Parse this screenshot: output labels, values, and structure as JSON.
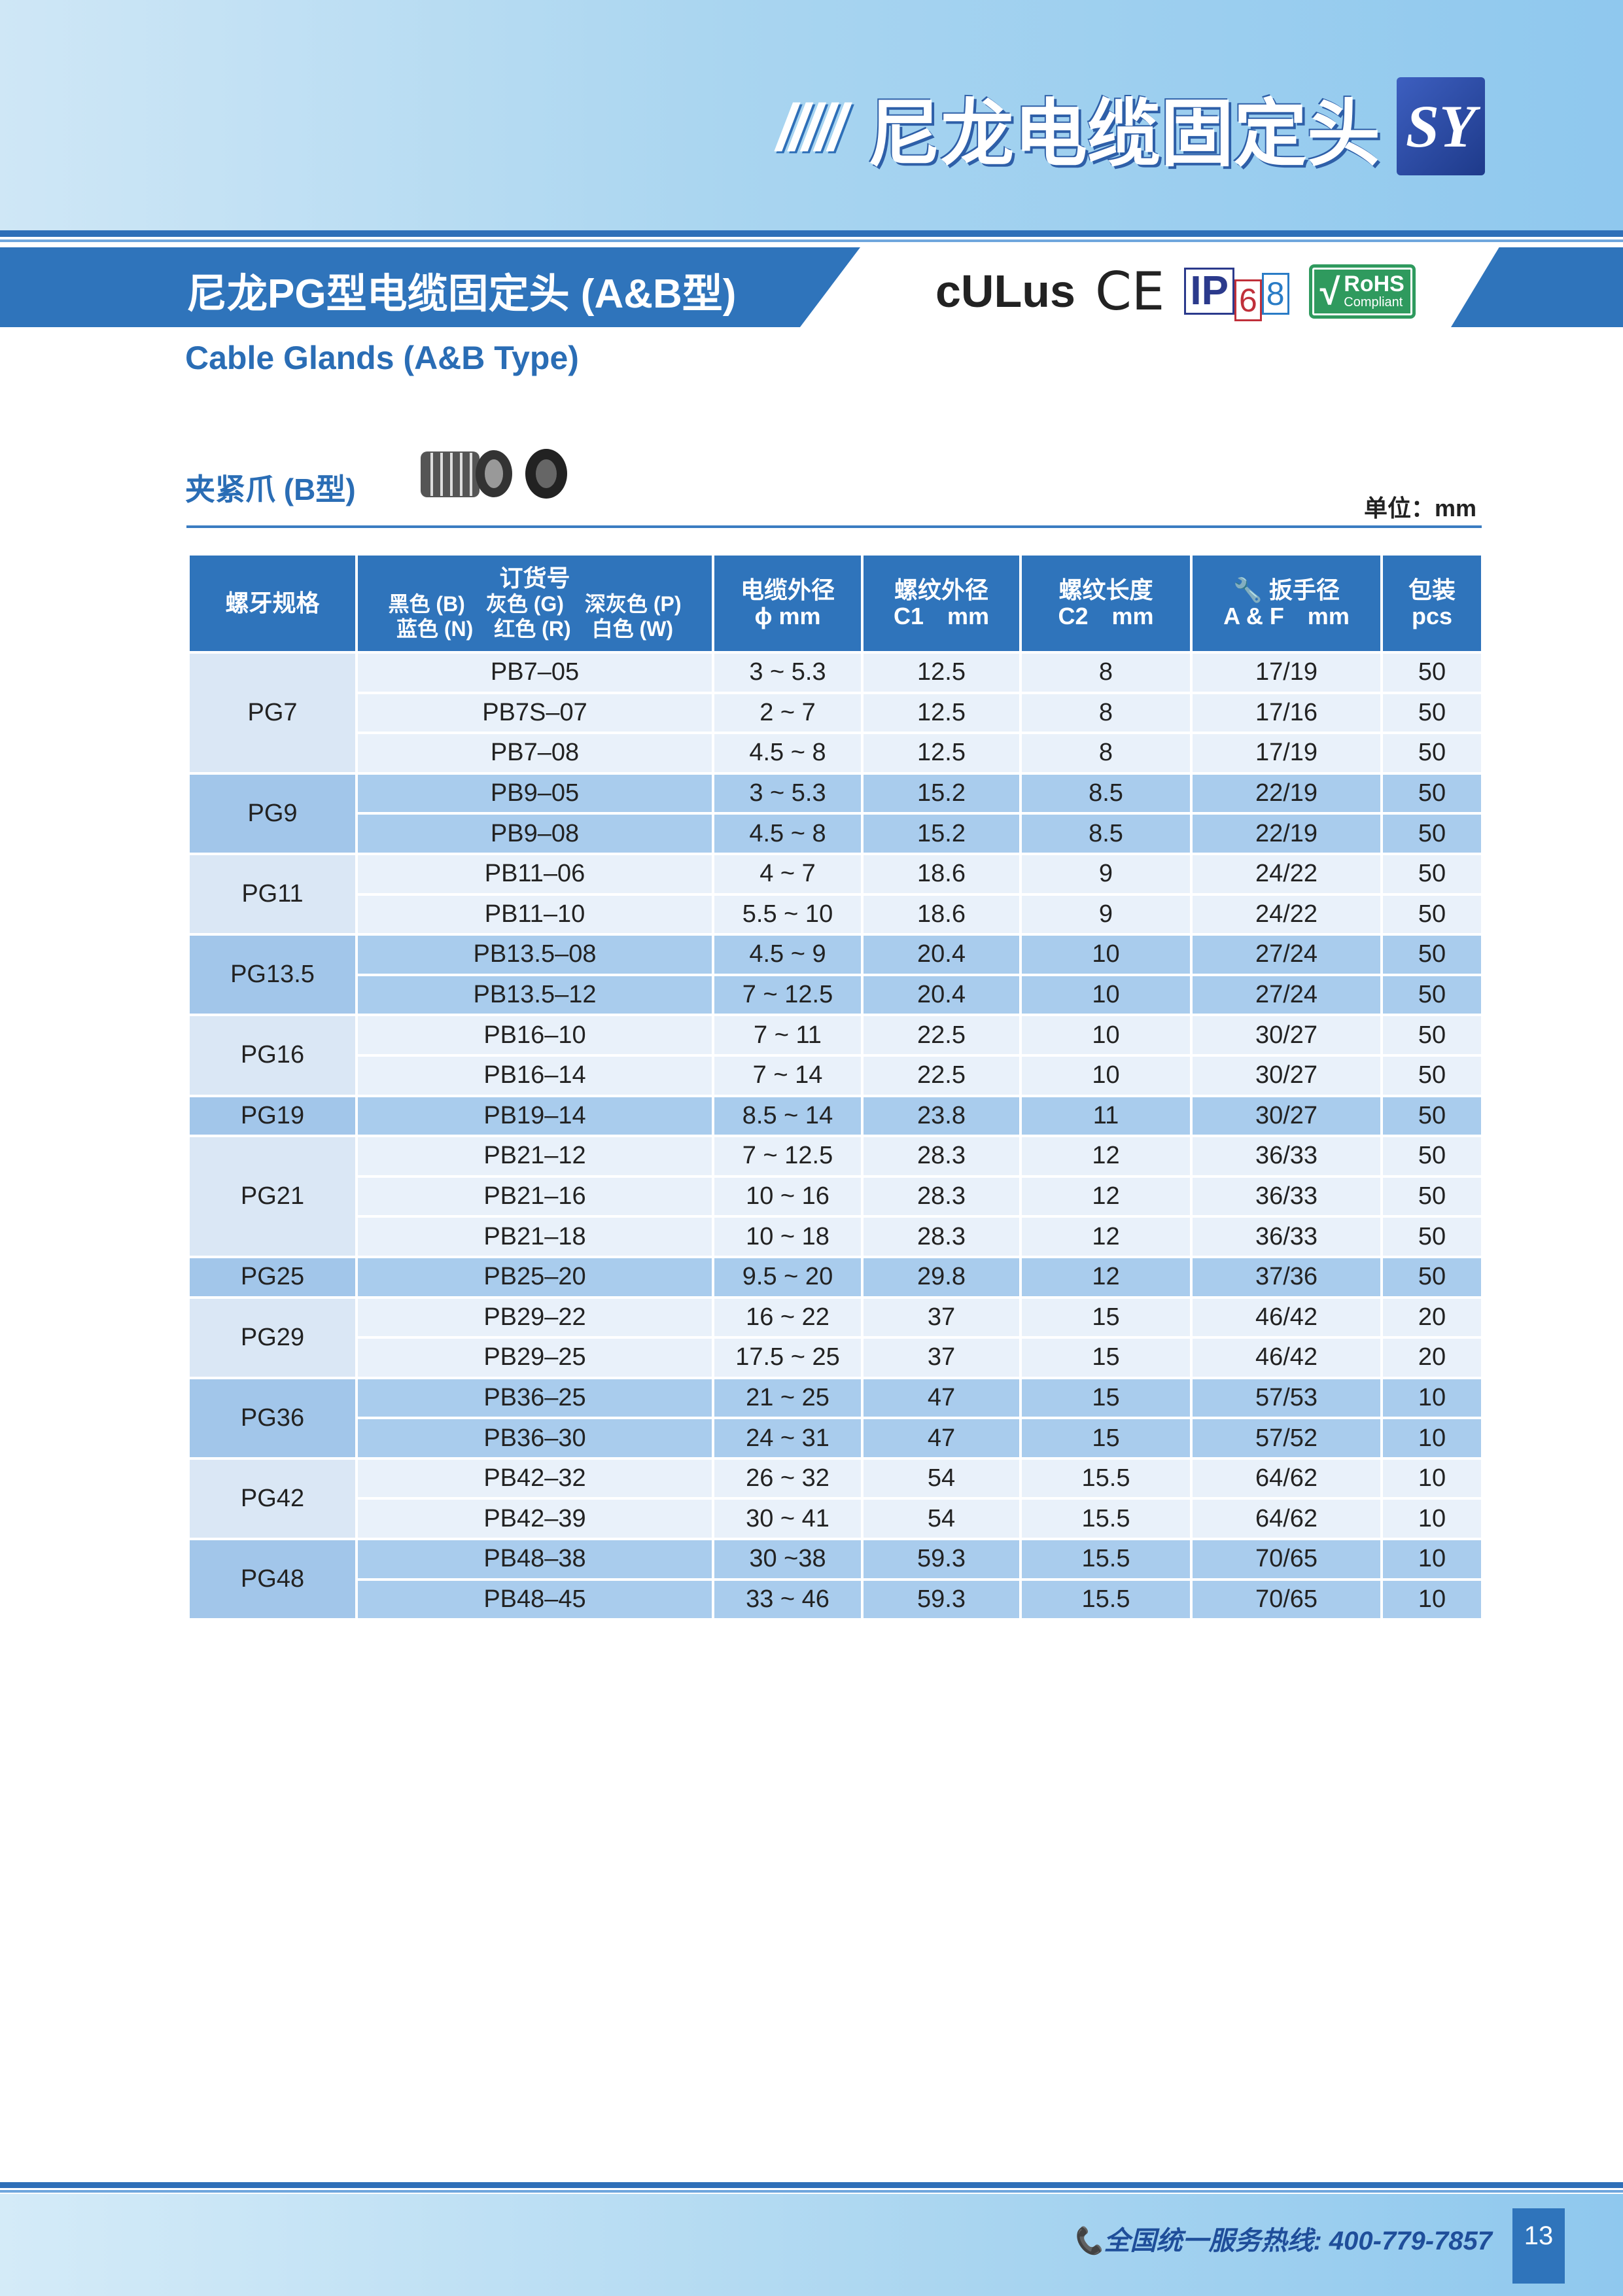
{
  "header": {
    "slashes": "/////",
    "title": "尼龙电缆固定头",
    "logo": "SY"
  },
  "banner": {
    "title": "尼龙PG型电缆固定头 (A&B型)"
  },
  "certifications": {
    "ul": "cULus",
    "ce": "CE",
    "ip": "IP",
    "ip_digit1": "6",
    "ip_digit2": "8",
    "rohs": "RoHS",
    "rohs_sub": "Compliant"
  },
  "subtitle": "Cable Glands (A&B Type)",
  "section": {
    "label": "夹紧爪 (B型)",
    "unit": "单位：mm"
  },
  "table": {
    "headers": {
      "thread": "螺牙规格",
      "order": "订货号",
      "colors_row1": "黑色 (B)　灰色 (G)　深灰色 (P)",
      "colors_row2": "蓝色 (N)　红色 (R)　白色 (W)",
      "cable": "电缆外径",
      "cable_unit": "ϕ mm",
      "c1": "螺纹外径",
      "c1_unit": "C1　mm",
      "c2": "螺纹长度",
      "c2_unit": "C2　mm",
      "af": "扳手径",
      "af_unit": "A & F　mm",
      "pack": "包装",
      "pack_unit": "pcs"
    },
    "groups": [
      {
        "thread": "PG7",
        "rows": [
          [
            "PB7–05",
            "3 ~ 5.3",
            "12.5",
            "8",
            "17/19",
            "50"
          ],
          [
            "PB7S–07",
            "2 ~ 7",
            "12.5",
            "8",
            "17/16",
            "50"
          ],
          [
            "PB7–08",
            "4.5 ~ 8",
            "12.5",
            "8",
            "17/19",
            "50"
          ]
        ]
      },
      {
        "thread": "PG9",
        "rows": [
          [
            "PB9–05",
            "3 ~ 5.3",
            "15.2",
            "8.5",
            "22/19",
            "50"
          ],
          [
            "PB9–08",
            "4.5 ~ 8",
            "15.2",
            "8.5",
            "22/19",
            "50"
          ]
        ]
      },
      {
        "thread": "PG11",
        "rows": [
          [
            "PB11–06",
            "4 ~ 7",
            "18.6",
            "9",
            "24/22",
            "50"
          ],
          [
            "PB11–10",
            "5.5 ~ 10",
            "18.6",
            "9",
            "24/22",
            "50"
          ]
        ]
      },
      {
        "thread": "PG13.5",
        "rows": [
          [
            "PB13.5–08",
            "4.5 ~ 9",
            "20.4",
            "10",
            "27/24",
            "50"
          ],
          [
            "PB13.5–12",
            "7 ~ 12.5",
            "20.4",
            "10",
            "27/24",
            "50"
          ]
        ]
      },
      {
        "thread": "PG16",
        "rows": [
          [
            "PB16–10",
            "7 ~ 11",
            "22.5",
            "10",
            "30/27",
            "50"
          ],
          [
            "PB16–14",
            "7 ~ 14",
            "22.5",
            "10",
            "30/27",
            "50"
          ]
        ]
      },
      {
        "thread": "PG19",
        "rows": [
          [
            "PB19–14",
            "8.5 ~ 14",
            "23.8",
            "11",
            "30/27",
            "50"
          ]
        ]
      },
      {
        "thread": "PG21",
        "rows": [
          [
            "PB21–12",
            "7 ~ 12.5",
            "28.3",
            "12",
            "36/33",
            "50"
          ],
          [
            "PB21–16",
            "10 ~ 16",
            "28.3",
            "12",
            "36/33",
            "50"
          ],
          [
            "PB21–18",
            "10 ~ 18",
            "28.3",
            "12",
            "36/33",
            "50"
          ]
        ]
      },
      {
        "thread": "PG25",
        "rows": [
          [
            "PB25–20",
            "9.5 ~ 20",
            "29.8",
            "12",
            "37/36",
            "50"
          ]
        ]
      },
      {
        "thread": "PG29",
        "rows": [
          [
            "PB29–22",
            "16 ~ 22",
            "37",
            "15",
            "46/42",
            "20"
          ],
          [
            "PB29–25",
            "17.5 ~ 25",
            "37",
            "15",
            "46/42",
            "20"
          ]
        ]
      },
      {
        "thread": "PG36",
        "rows": [
          [
            "PB36–25",
            "21 ~ 25",
            "47",
            "15",
            "57/53",
            "10"
          ],
          [
            "PB36–30",
            "24 ~ 31",
            "47",
            "15",
            "57/52",
            "10"
          ]
        ]
      },
      {
        "thread": "PG42",
        "rows": [
          [
            "PB42–32",
            "26 ~ 32",
            "54",
            "15.5",
            "64/62",
            "10"
          ],
          [
            "PB42–39",
            "30 ~ 41",
            "54",
            "15.5",
            "64/62",
            "10"
          ]
        ]
      },
      {
        "thread": "PG48",
        "rows": [
          [
            "PB48–38",
            "30 ~38",
            "59.3",
            "15.5",
            "70/65",
            "10"
          ],
          [
            "PB48–45",
            "33 ~ 46",
            "59.3",
            "15.5",
            "70/65",
            "10"
          ]
        ]
      }
    ]
  },
  "footer": {
    "hotline": "📞全国统一服务热线: 400-779-7857",
    "page": "13"
  },
  "colors": {
    "primary": "#2f74bb",
    "row_light": "#e9f1fa",
    "row_dark": "#a9cced",
    "text_blue": "#2a6db5"
  }
}
